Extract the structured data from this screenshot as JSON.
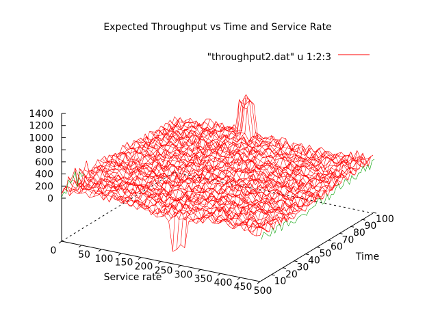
{
  "chart_data": {
    "type": "surface",
    "title": "Expected Throughput vs Time and Service Rate",
    "xlabel": "Service rate",
    "ylabel": "Time",
    "zlabel": "",
    "x_ticks": [
      "0",
      "50",
      "100",
      "150",
      "200",
      "250",
      "300",
      "350",
      "400",
      "450",
      "500"
    ],
    "y_ticks": [
      "10",
      "20",
      "30",
      "40",
      "50",
      "60",
      "70",
      "80",
      "90",
      "100"
    ],
    "z_ticks": [
      "0",
      "200",
      "400",
      "600",
      "800",
      "1000",
      "1200",
      "1400"
    ],
    "xlim": [
      0,
      500
    ],
    "ylim": [
      0,
      100
    ],
    "zlim": [
      0,
      1400
    ],
    "legend": {
      "label": "\"throughput2.dat\" u 1:2:3",
      "position": "top-right",
      "color": "#ff0000"
    },
    "colors": {
      "surface_top": "#ff0000",
      "surface_bottom": "#00a000",
      "axis": "#000000"
    },
    "surface_description_values": {
      "typical_throughput_range": [
        600,
        900
      ],
      "peak_near_service_rate_200_time_100": 1420
    }
  }
}
